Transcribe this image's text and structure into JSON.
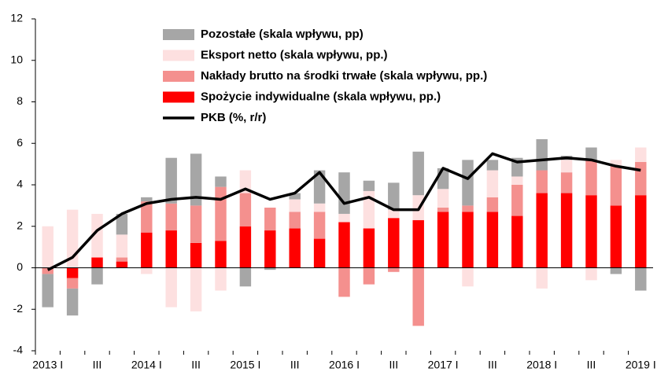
{
  "chart_data": {
    "type": "bar",
    "stacked": true,
    "categories": [
      "2013 I",
      null,
      "III",
      null,
      "2014 I",
      null,
      "III",
      null,
      "2015 I",
      null,
      "III",
      null,
      "2016 I",
      null,
      "III",
      null,
      "2017 I",
      null,
      "III",
      null,
      "2018 I",
      null,
      "III",
      null,
      "2019 I"
    ],
    "series": [
      {
        "name": "Pozostałe (skala wpływu, pp)",
        "color": "#a6a6a6",
        "values": [
          -1.6,
          -1.3,
          -0.8,
          1.0,
          0.2,
          2.2,
          2.5,
          0.5,
          -0.9,
          -0.1,
          0.3,
          1.6,
          2.0,
          0.5,
          1.3,
          2.1,
          1.0,
          2.2,
          0.5,
          0.9,
          1.5,
          0.2,
          0.6,
          -0.3,
          -1.1
        ]
      },
      {
        "name": "Eksport netto (skala wpływu, pp.)",
        "color": "#fde0e0",
        "values": [
          2.0,
          2.8,
          2.1,
          1.1,
          -0.3,
          -1.9,
          -2.1,
          -1.1,
          1.1,
          0.0,
          0.6,
          0.4,
          0.4,
          1.8,
          0.4,
          1.2,
          0.9,
          -0.9,
          1.3,
          0.4,
          -1.0,
          0.6,
          -0.6,
          0.3,
          0.7
        ]
      },
      {
        "name": "Nakłady brutto na środki trwałe (skala wpływu, pp.)",
        "color": "#f4908e",
        "values": [
          -0.3,
          -0.5,
          0.0,
          0.2,
          1.5,
          1.3,
          1.8,
          2.6,
          1.6,
          1.1,
          0.8,
          1.3,
          -1.4,
          -0.8,
          -0.2,
          -2.8,
          0.2,
          0.3,
          0.7,
          1.5,
          1.1,
          1.0,
          1.7,
          1.9,
          1.6
        ]
      },
      {
        "name": "Spożycie indywidualne (skala wpływu, pp.)",
        "color": "#ff0000",
        "values": [
          0.0,
          -0.5,
          0.5,
          0.3,
          1.7,
          1.8,
          1.2,
          1.3,
          2.0,
          1.8,
          1.9,
          1.4,
          2.2,
          1.9,
          2.4,
          2.3,
          2.7,
          2.7,
          2.7,
          2.5,
          3.6,
          3.6,
          3.5,
          3.0,
          3.5
        ]
      },
      {
        "name": "PKB (%, r/r)",
        "color": "#000000",
        "type": "line",
        "values": [
          -0.1,
          0.5,
          1.8,
          2.6,
          3.1,
          3.3,
          3.4,
          3.3,
          3.8,
          3.3,
          3.6,
          4.6,
          3.1,
          3.4,
          2.8,
          2.8,
          4.8,
          4.3,
          5.5,
          5.1,
          5.2,
          5.3,
          5.2,
          4.9,
          4.7
        ]
      }
    ],
    "ylim": [
      -4,
      12
    ],
    "yticks": [
      -4,
      -2,
      0,
      2,
      4,
      6,
      8,
      10,
      12
    ],
    "grid": false,
    "legend": "top"
  }
}
